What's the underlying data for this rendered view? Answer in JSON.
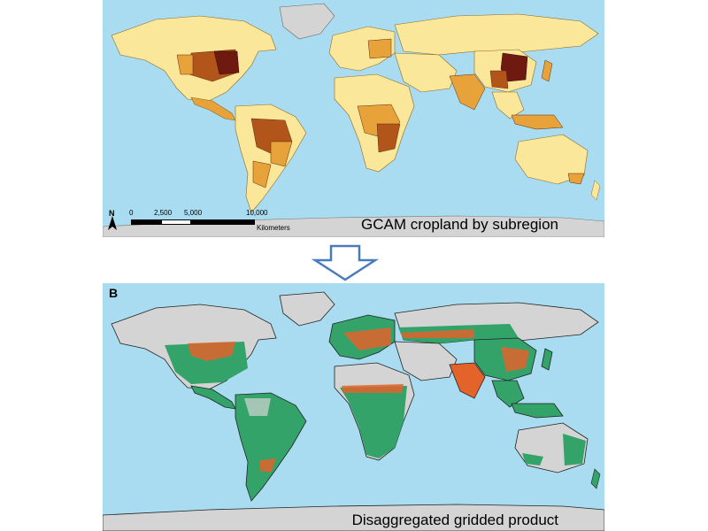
{
  "panel_a": {
    "caption": "GCAM cropland by subregion",
    "scale_labels": [
      "0",
      "2,500",
      "5,000",
      "10,000"
    ],
    "scale_unit": "Kilometers",
    "north_label": "N"
  },
  "panel_b": {
    "letter": "B",
    "caption": "Disaggregated gridded product"
  },
  "colors": {
    "ocean": "#a9dcf0",
    "no_data_land": "#d4d4d4",
    "crop_light": "#fbe79a",
    "crop_mid": "#e8a23a",
    "crop_high": "#b2551b",
    "crop_max": "#6e1a10",
    "grid_green": "#33a36a",
    "grid_orange": "#e3632b"
  },
  "arrow_icon": "down-arrow-icon"
}
